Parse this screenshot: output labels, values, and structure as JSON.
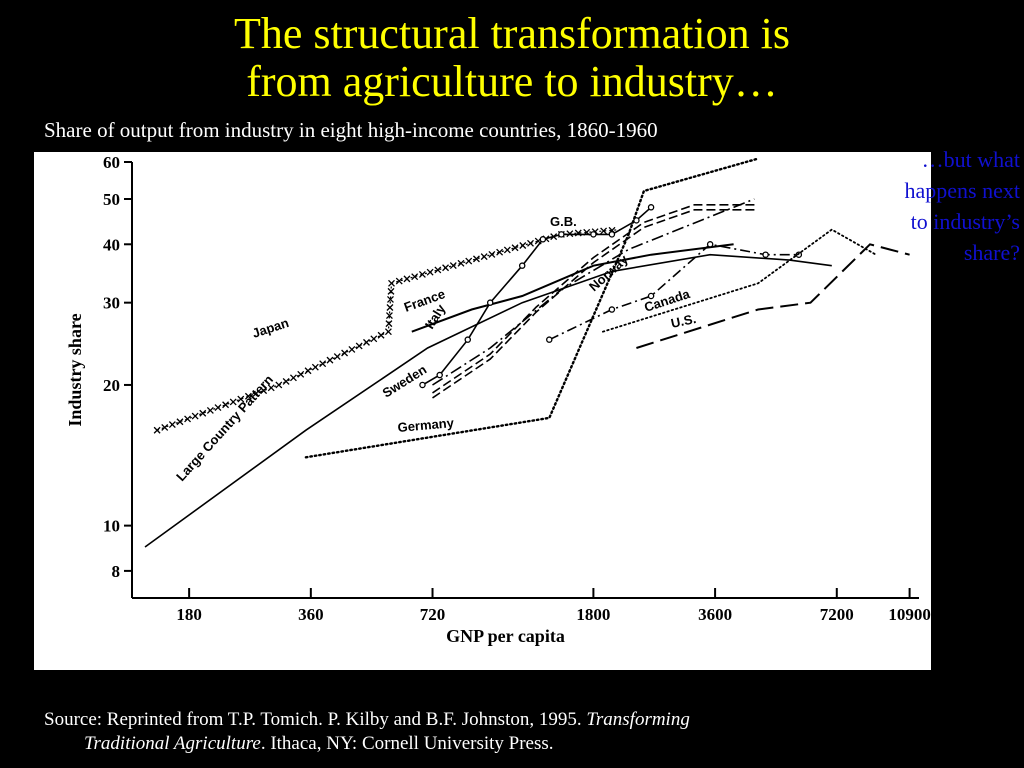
{
  "slide": {
    "title_line1": "The structural transformation is",
    "title_line2": "from agriculture to industry…",
    "subtitle": "Share of output from industry in eight high-income countries, 1860-1960",
    "annotation": "…but what happens next to industry’s share?",
    "source_prefix": "Source:  Reprinted from T.P. Tomich. P. Kilby and B.F. Johnston,   1995.  ",
    "source_title_part1": "Transforming",
    "source_title_part2": "Traditional Agriculture",
    "source_suffix": ".  Ithaca, NY: Cornell University Press."
  },
  "colors": {
    "background": "#000000",
    "title": "#ffff00",
    "text": "#ffffff",
    "annotation": "#1010d0",
    "chart_bg": "#ffffff",
    "ink": "#000000"
  },
  "chart_data": {
    "type": "line",
    "xlabel": "GNP per capita",
    "ylabel": "Industry share",
    "x_scale": "log",
    "y_scale": "log",
    "x_ticks": [
      180,
      360,
      720,
      1800,
      3600,
      7200,
      10900
    ],
    "y_ticks": [
      8,
      10,
      20,
      30,
      40,
      50,
      60
    ],
    "xlim": [
      130,
      11500
    ],
    "ylim": [
      7,
      60
    ],
    "grid": false,
    "legend": "labels placed on lines",
    "series": [
      {
        "name": "Large Country Pattern",
        "style": "solid-thin",
        "points": [
          [
            140,
            9
          ],
          [
            350,
            16
          ],
          [
            700,
            24
          ],
          [
            1200,
            30
          ],
          [
            2000,
            35
          ],
          [
            3500,
            38
          ],
          [
            5500,
            37
          ],
          [
            7000,
            36
          ]
        ]
      },
      {
        "name": "Japan",
        "style": "x-marker",
        "points": [
          [
            150,
            16
          ],
          [
            300,
            20
          ],
          [
            560,
            26
          ],
          [
            570,
            33
          ],
          [
            1500,
            42
          ],
          [
            2100,
            43
          ]
        ]
      },
      {
        "name": "France",
        "style": "solid",
        "points": [
          [
            640,
            26
          ],
          [
            900,
            29
          ],
          [
            1200,
            31
          ],
          [
            1800,
            36
          ],
          [
            2500,
            38
          ],
          [
            4000,
            40
          ]
        ]
      },
      {
        "name": "Italy",
        "style": "dash-dot",
        "points": [
          [
            720,
            20
          ],
          [
            1000,
            24
          ],
          [
            1500,
            32
          ],
          [
            2200,
            39
          ],
          [
            4500,
            50
          ]
        ]
      },
      {
        "name": "Sweden",
        "style": "double-dashed",
        "points": [
          [
            720,
            19
          ],
          [
            1000,
            23
          ],
          [
            1300,
            29
          ],
          [
            1800,
            37
          ],
          [
            2400,
            44
          ],
          [
            3200,
            48
          ],
          [
            4600,
            48
          ]
        ]
      },
      {
        "name": "G.B.",
        "style": "circle-marker",
        "points": [
          [
            680,
            20
          ],
          [
            750,
            21
          ],
          [
            880,
            25
          ],
          [
            1000,
            30
          ],
          [
            1200,
            36
          ],
          [
            1350,
            41
          ],
          [
            1500,
            42
          ],
          [
            1800,
            42
          ],
          [
            2000,
            42
          ],
          [
            2300,
            45
          ],
          [
            2500,
            48
          ]
        ]
      },
      {
        "name": "Germany",
        "style": "dotted-then-dashed",
        "points": [
          [
            350,
            14
          ],
          [
            1400,
            17
          ],
          [
            2200,
            42
          ],
          [
            2400,
            52
          ],
          [
            4600,
            61
          ]
        ]
      },
      {
        "name": "Norway",
        "style": "dash-dot-marker",
        "points": [
          [
            1400,
            25
          ],
          [
            2000,
            29
          ],
          [
            2500,
            31
          ],
          [
            3500,
            40
          ],
          [
            4800,
            38
          ],
          [
            5800,
            38
          ]
        ]
      },
      {
        "name": "Canada",
        "style": "dotted",
        "points": [
          [
            1900,
            26
          ],
          [
            4600,
            33
          ],
          [
            7000,
            43
          ],
          [
            9000,
            38
          ]
        ]
      },
      {
        "name": "U.S.",
        "style": "long-dash",
        "points": [
          [
            2300,
            24
          ],
          [
            4600,
            29
          ],
          [
            6200,
            30
          ],
          [
            8700,
            40
          ],
          [
            10900,
            38
          ]
        ]
      }
    ]
  }
}
